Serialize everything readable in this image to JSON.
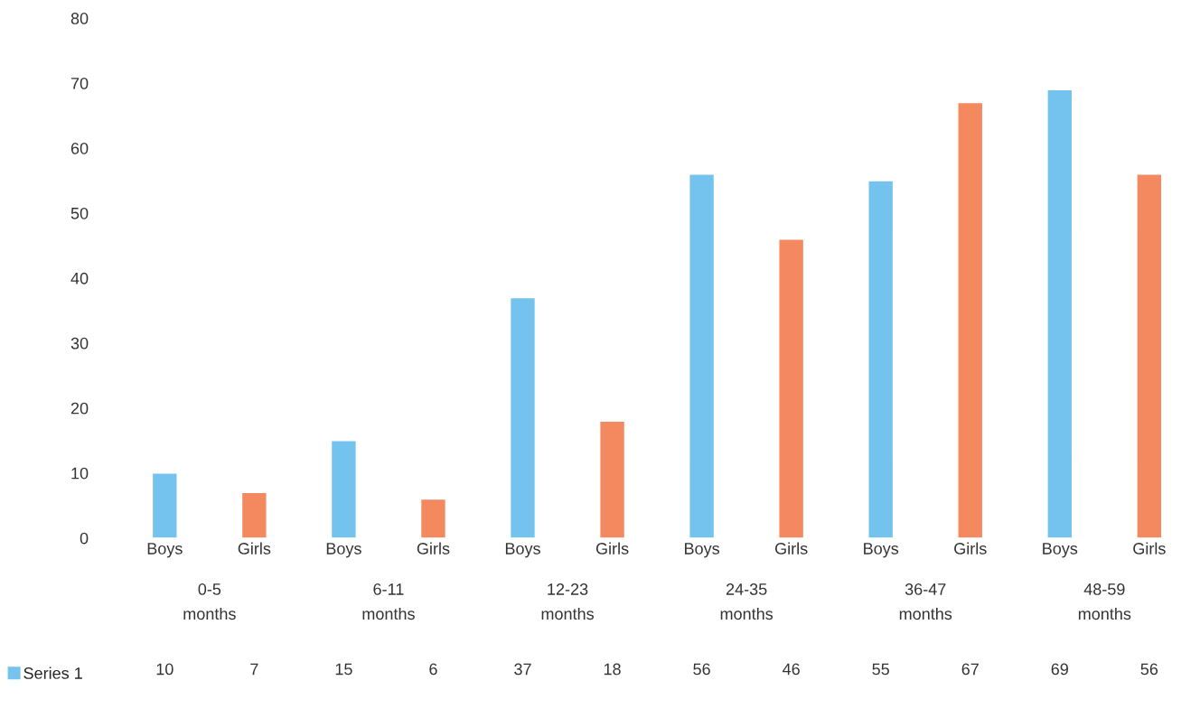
{
  "chart_data": {
    "type": "bar",
    "categories": [
      "Boys",
      "Girls",
      "Boys",
      "Girls",
      "Boys",
      "Girls",
      "Boys",
      "Girls",
      "Boys",
      "Girls",
      "Boys",
      "Girls"
    ],
    "series": [
      {
        "name": "Series 1",
        "color": "#74c3ee",
        "colors": [
          "#74c3ee",
          "#f4895f",
          "#74c3ee",
          "#f4895f",
          "#74c3ee",
          "#f4895f",
          "#74c3ee",
          "#f4895f",
          "#74c3ee",
          "#f4895f",
          "#74c3ee",
          "#f4895f"
        ],
        "values": [
          10,
          7,
          15,
          6,
          37,
          18,
          56,
          46,
          55,
          67,
          69,
          56
        ]
      }
    ],
    "annotations": [
      "0-5\nmonths",
      "6-11\nmonths",
      "12-23\nmonths",
      "24-35\nmonths",
      "36-47\nmonths",
      "48-59\nmonths"
    ],
    "ylim": [
      0,
      80
    ],
    "yticks": [
      0,
      10,
      20,
      30,
      40,
      50,
      60,
      70,
      80
    ],
    "data_labels": true,
    "legend": "bottom left",
    "grid": false
  }
}
